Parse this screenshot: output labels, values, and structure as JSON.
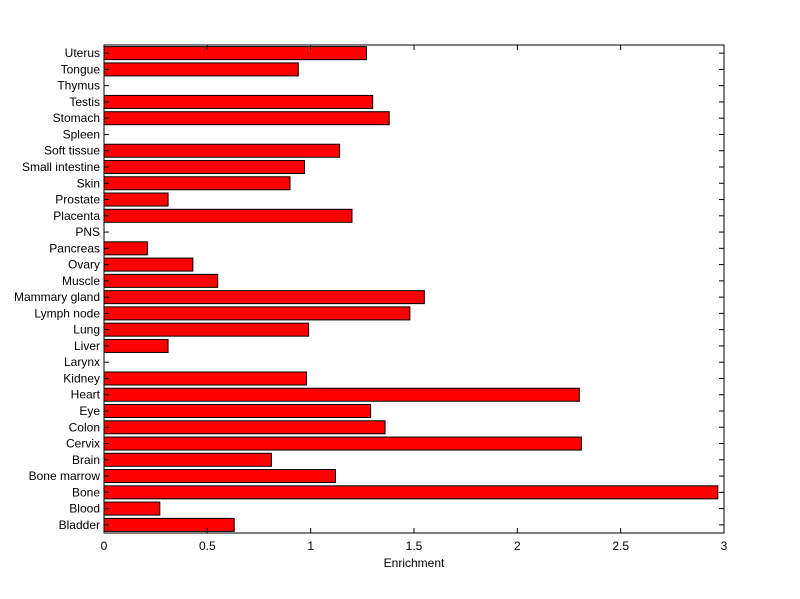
{
  "chart_data": {
    "type": "bar",
    "orientation": "horizontal",
    "xlabel": "Enrichment",
    "xlim": [
      0,
      3
    ],
    "xticks": [
      "0",
      "0.5",
      "1",
      "1.5",
      "2",
      "2.5",
      "3"
    ],
    "categories": [
      "Uterus",
      "Tongue",
      "Thymus",
      "Testis",
      "Stomach",
      "Spleen",
      "Soft tissue",
      "Small intestine",
      "Skin",
      "Prostate",
      "Placenta",
      "PNS",
      "Pancreas",
      "Ovary",
      "Muscle",
      "Mammary gland",
      "Lymph node",
      "Lung",
      "Liver",
      "Larynx",
      "Kidney",
      "Heart",
      "Eye",
      "Colon",
      "Cervix",
      "Brain",
      "Bone marrow",
      "Bone",
      "Blood",
      "Bladder"
    ],
    "values": [
      1.27,
      0.94,
      0,
      1.3,
      1.38,
      0,
      1.14,
      0.97,
      0.9,
      0.31,
      1.2,
      0,
      0.21,
      0.43,
      0.55,
      1.55,
      1.48,
      0.99,
      0.31,
      0,
      0.98,
      2.3,
      1.29,
      1.36,
      2.31,
      0.81,
      1.12,
      2.97,
      0.27,
      0.63
    ],
    "bar_color": "#ff0000",
    "grid": false,
    "legend": "none"
  }
}
